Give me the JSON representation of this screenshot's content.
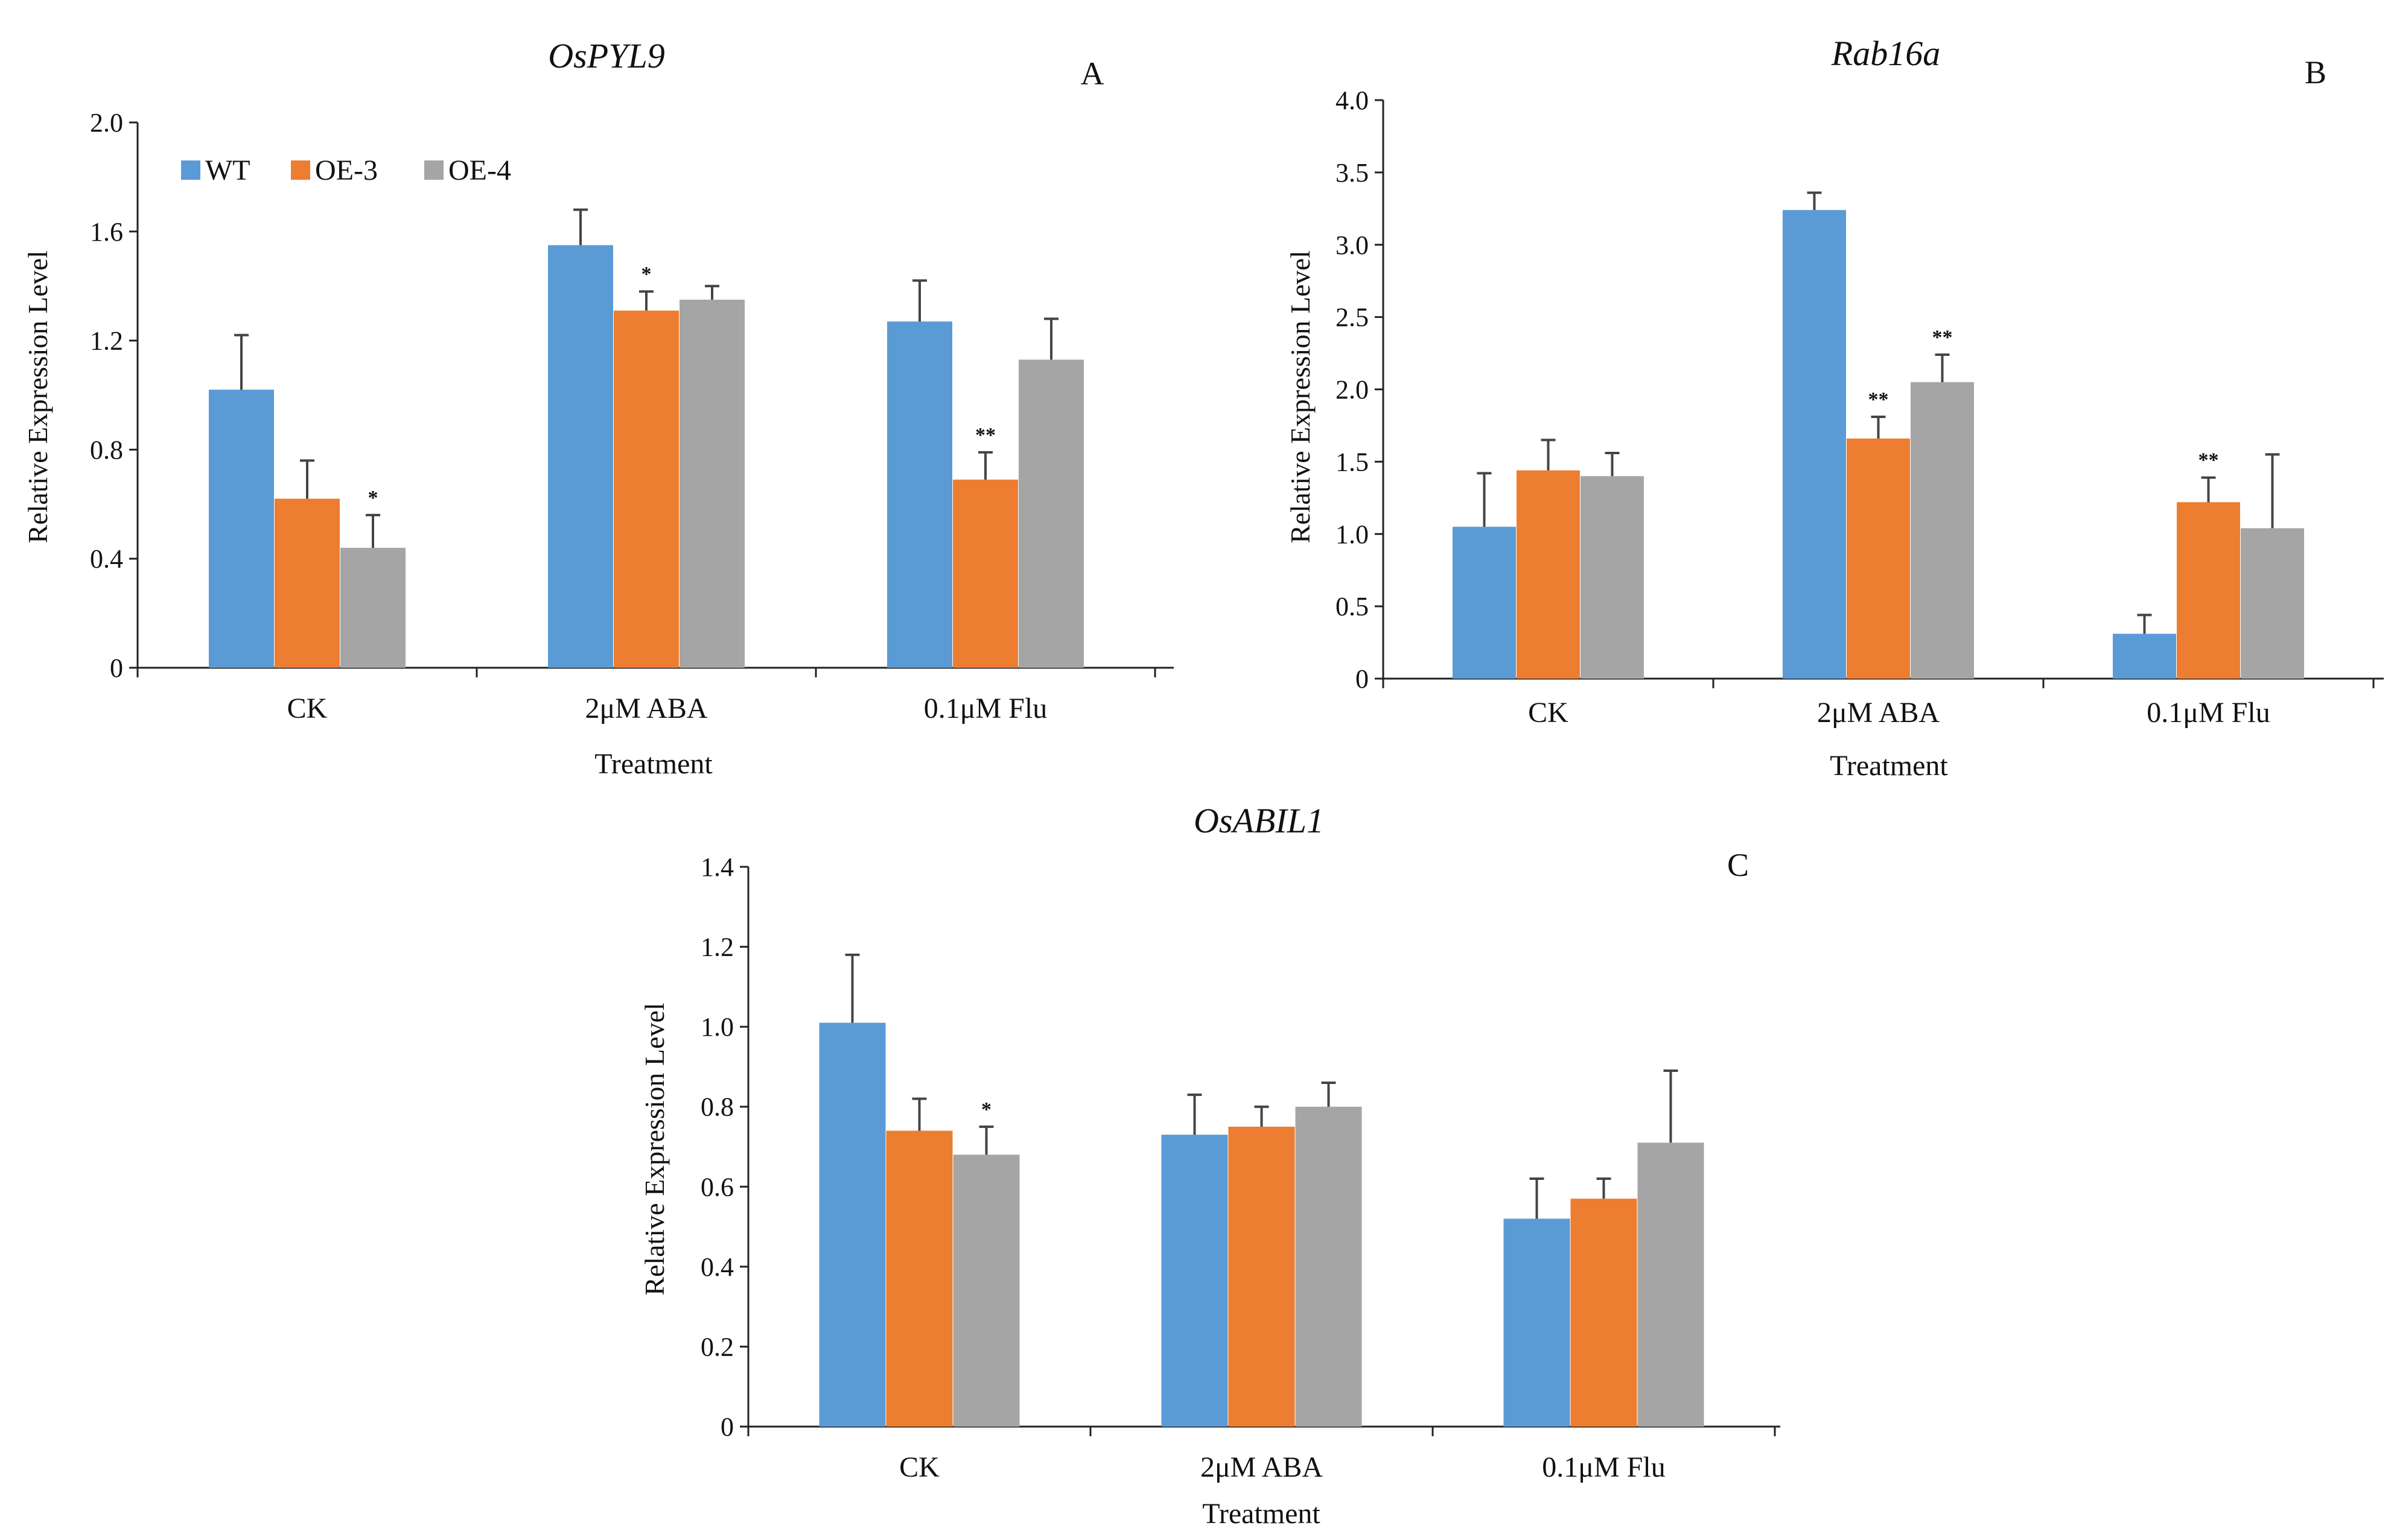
{
  "legend": [
    {
      "name": "WT",
      "color": "#5b9bd5"
    },
    {
      "name": "OE-3",
      "color": "#ed7d31"
    },
    {
      "name": "OE-4",
      "color": "#a5a5a5"
    }
  ],
  "chart_data": [
    {
      "type": "bar",
      "title": "OsPYL9",
      "panel_label": "A",
      "xlabel": "Treatment",
      "ylabel": "Relative Expression Level",
      "categories": [
        "CK",
        "2μM ABA",
        "0.1μM Flu"
      ],
      "ylim": [
        0,
        2.0
      ],
      "yticks": [
        "0",
        "0.4",
        "0.8",
        "1.2",
        "1.6",
        "2.0"
      ],
      "legend_position": "top-left",
      "series": [
        {
          "name": "WT",
          "values": [
            1.02,
            1.55,
            1.27
          ],
          "errors": [
            0.2,
            0.13,
            0.15
          ],
          "sig": [
            "",
            "",
            ""
          ]
        },
        {
          "name": "OE-3",
          "values": [
            0.62,
            1.31,
            0.69
          ],
          "errors": [
            0.14,
            0.07,
            0.1
          ],
          "sig": [
            "",
            "*",
            "**"
          ]
        },
        {
          "name": "OE-4",
          "values": [
            0.44,
            1.35,
            1.13
          ],
          "errors": [
            0.12,
            0.05,
            0.15
          ],
          "sig": [
            "*",
            "",
            ""
          ]
        }
      ]
    },
    {
      "type": "bar",
      "title": "Rab16a",
      "panel_label": "B",
      "xlabel": "Treatment",
      "ylabel": "Relative Expression Level",
      "categories": [
        "CK",
        "2μM ABA",
        "0.1μM Flu"
      ],
      "ylim": [
        0,
        4.0
      ],
      "yticks": [
        "0",
        "0.5",
        "1.0",
        "1.5",
        "2.0",
        "2.5",
        "3.0",
        "3.5",
        "4.0"
      ],
      "series": [
        {
          "name": "WT",
          "values": [
            1.05,
            3.24,
            0.31
          ],
          "errors": [
            0.37,
            0.12,
            0.13
          ],
          "sig": [
            "",
            "",
            ""
          ]
        },
        {
          "name": "OE-3",
          "values": [
            1.44,
            1.66,
            1.22
          ],
          "errors": [
            0.21,
            0.15,
            0.17
          ],
          "sig": [
            "",
            "**",
            "**"
          ]
        },
        {
          "name": "OE-4",
          "values": [
            1.4,
            2.05,
            1.04
          ],
          "errors": [
            0.16,
            0.19,
            0.51
          ],
          "sig": [
            "",
            "**",
            ""
          ]
        }
      ]
    },
    {
      "type": "bar",
      "title": "OsABIL1",
      "panel_label": "C",
      "xlabel": "Treatment",
      "ylabel": "Relative Expression Level",
      "categories": [
        "CK",
        "2μM ABA",
        "0.1μM Flu"
      ],
      "ylim": [
        0,
        1.4
      ],
      "yticks": [
        "0",
        "0.2",
        "0.4",
        "0.6",
        "0.8",
        "1.0",
        "1.2",
        "1.4"
      ],
      "series": [
        {
          "name": "WT",
          "values": [
            1.01,
            0.73,
            0.52
          ],
          "errors": [
            0.17,
            0.1,
            0.1
          ],
          "sig": [
            "",
            "",
            ""
          ]
        },
        {
          "name": "OE-3",
          "values": [
            0.74,
            0.75,
            0.57
          ],
          "errors": [
            0.08,
            0.05,
            0.05
          ],
          "sig": [
            "",
            "",
            ""
          ]
        },
        {
          "name": "OE-4",
          "values": [
            0.68,
            0.8,
            0.71
          ],
          "errors": [
            0.07,
            0.06,
            0.18
          ],
          "sig": [
            "*",
            "",
            ""
          ]
        }
      ]
    }
  ]
}
